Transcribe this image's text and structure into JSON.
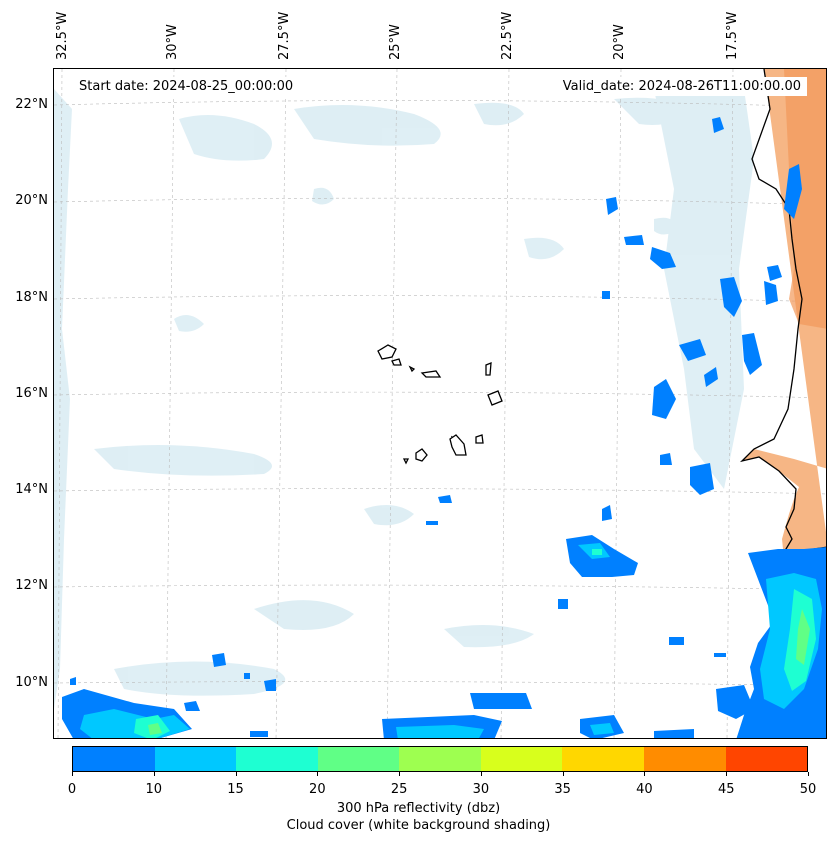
{
  "header": {
    "start_date": "Start date: 2024-08-25_00:00:00",
    "valid_date": "Valid_date: 2024-08-26T11:00:00.00"
  },
  "axes": {
    "lon_labels": [
      "32.5°W",
      "30°W",
      "27.5°W",
      "25°W",
      "22.5°W",
      "20°W",
      "17.5°W"
    ],
    "lat_labels": [
      "22°N",
      "20°N",
      "18°N",
      "16°N",
      "14°N",
      "12°N",
      "10°N"
    ]
  },
  "colorbar": {
    "ticks": [
      "0",
      "10",
      "15",
      "20",
      "25",
      "30",
      "35",
      "40",
      "45",
      "50"
    ],
    "colors": [
      "#0080ff",
      "#00c8ff",
      "#1effd2",
      "#60ff86",
      "#9eff50",
      "#d8ff1c",
      "#ffd700",
      "#ff8c00",
      "#ff4500"
    ],
    "label": "300 hPa reflectivity (dbz)",
    "sublabel": "Cloud cover (white background shading)"
  },
  "map": {
    "land_color": "#f4a66a",
    "coast_color": "#000000",
    "reflectivity_color": "#0080ff",
    "cloud_color": "#d6eaf2"
  }
}
